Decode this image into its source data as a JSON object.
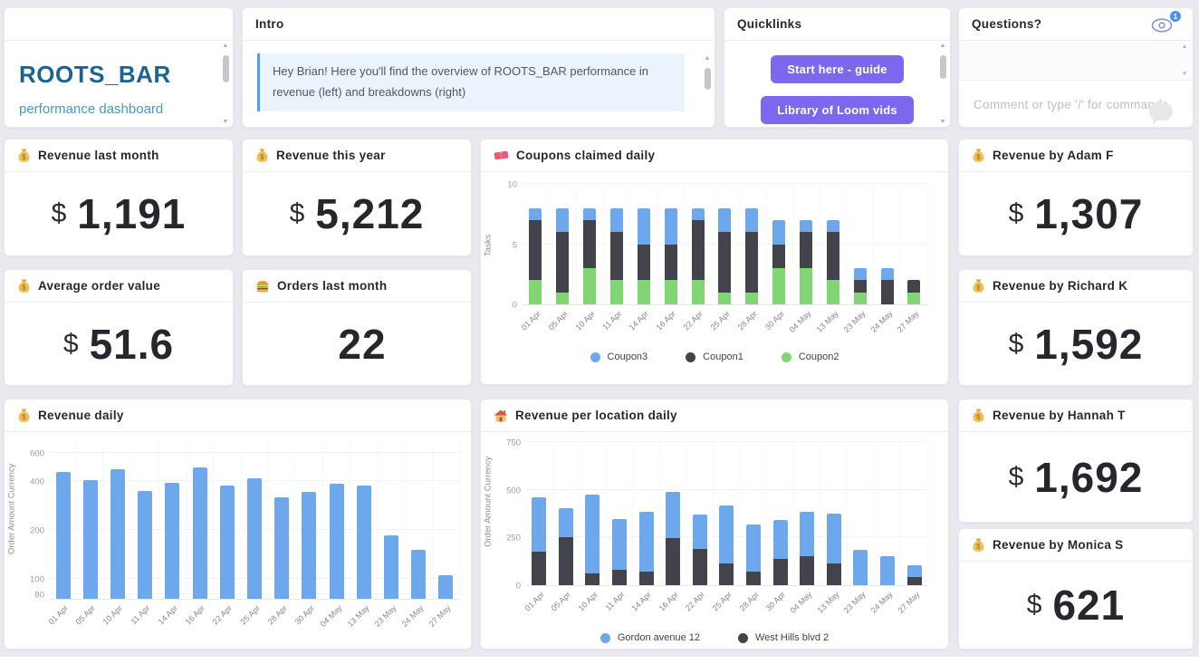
{
  "brand": {
    "title": "ROOTS_BAR",
    "subtitle": "performance dashboard"
  },
  "intro": {
    "title": "Intro",
    "text": "Hey Brian! Here you'll find the overview of ROOTS_BAR performance in revenue (left) and breakdowns (right)"
  },
  "quicklinks": {
    "title": "Quicklinks",
    "buttons": [
      "Start here - guide",
      "Library of Loom vids"
    ]
  },
  "questions": {
    "title": "Questions?",
    "watcher_badge": "1",
    "comment_placeholder": "Comment or type '/' for commands"
  },
  "kpis": [
    {
      "title": "Revenue last month",
      "icon": "money-bag-icon",
      "prefix": "$",
      "value": "1,191"
    },
    {
      "title": "Revenue this year",
      "icon": "money-bag-icon",
      "prefix": "$",
      "value": "5,212"
    },
    {
      "title": "Average order value",
      "icon": "money-bag-icon",
      "prefix": "$",
      "value": "51.6"
    },
    {
      "title": "Orders last month",
      "icon": "burger-icon",
      "prefix": "",
      "value": "22"
    },
    {
      "title": "Revenue by Adam F",
      "icon": "money-bag-icon",
      "prefix": "$",
      "value": "1,307"
    },
    {
      "title": "Revenue by Richard K",
      "icon": "money-bag-icon",
      "prefix": "$",
      "value": "1,592"
    },
    {
      "title": "Revenue by Hannah T",
      "icon": "money-bag-icon",
      "prefix": "$",
      "value": "1,692"
    },
    {
      "title": "Revenue by Monica S",
      "icon": "money-bag-icon",
      "prefix": "$",
      "value": "621"
    }
  ],
  "colors": {
    "accent_purple": "#7B68EE",
    "bar_blue": "#6DA8EC",
    "bar_dark": "#43434B",
    "bar_green": "#7FD673",
    "badge_blue": "#4A90F5",
    "brand_blue": "#1B6492",
    "quote_border": "#4AA0F5",
    "quote_bg": "#EBF4FD"
  },
  "chart_data": [
    {
      "type": "bar",
      "stacked": true,
      "title": "Coupons claimed daily",
      "icon": "ticket-icon",
      "ylabel": "Tasks",
      "scale": "linear",
      "ylim": [
        0,
        10
      ],
      "yticks": [
        10,
        5,
        0
      ],
      "grid": true,
      "legend_position": "bottom",
      "categories": [
        "01 Apr",
        "05 Apr",
        "10 Apr",
        "11 Apr",
        "14 Apr",
        "16 Apr",
        "22 Apr",
        "25 Apr",
        "28 Apr",
        "30 Apr",
        "04 May",
        "13 May",
        "23 May",
        "24 May",
        "27 May"
      ],
      "series": [
        {
          "name": "Coupon2",
          "color": "#7FD673",
          "values": [
            2,
            1,
            3,
            2,
            2,
            2,
            2,
            1,
            1,
            3,
            3,
            2,
            1,
            0,
            1
          ]
        },
        {
          "name": "Coupon1",
          "color": "#43434B",
          "values": [
            5,
            5,
            4,
            4,
            3,
            3,
            5,
            5,
            5,
            2,
            3,
            4,
            1,
            2,
            1
          ]
        },
        {
          "name": "Coupon3",
          "color": "#6DA8EC",
          "values": [
            1,
            2,
            1,
            2,
            3,
            3,
            1,
            2,
            2,
            2,
            1,
            1,
            1,
            1,
            0
          ]
        }
      ],
      "legend_order": [
        "Coupon3",
        "Coupon1",
        "Coupon2"
      ]
    },
    {
      "type": "bar",
      "stacked": false,
      "title": "Revenue daily",
      "icon": "money-bag-icon",
      "ylabel": "Order Amount Currency",
      "scale": "log",
      "ylim": [
        75,
        700
      ],
      "yticks": [
        600,
        400,
        200,
        100,
        80
      ],
      "grid": true,
      "legend_position": "none",
      "categories": [
        "01 Apr",
        "05 Apr",
        "10 Apr",
        "11 Apr",
        "14 Apr",
        "16 Apr",
        "22 Apr",
        "25 Apr",
        "28 Apr",
        "30 Apr",
        "04 May",
        "13 May",
        "23 May",
        "24 May",
        "27 May"
      ],
      "series": [
        {
          "name": "Order Amount",
          "color": "#6DA8EC",
          "values": [
            460,
            405,
            475,
            350,
            390,
            490,
            375,
            420,
            320,
            345,
            385,
            375,
            185,
            150,
            105
          ]
        }
      ],
      "legend_order": []
    },
    {
      "type": "bar",
      "stacked": true,
      "title": "Revenue per location daily",
      "icon": "house-icon",
      "ylabel": "Order Amount Currency",
      "scale": "linear",
      "ylim": [
        0,
        750
      ],
      "yticks": [
        750,
        500,
        250,
        0
      ],
      "grid": true,
      "legend_position": "bottom",
      "categories": [
        "01 Apr",
        "05 Apr",
        "10 Apr",
        "11 Apr",
        "14 Apr",
        "16 Apr",
        "22 Apr",
        "25 Apr",
        "28 Apr",
        "30 Apr",
        "04 May",
        "13 May",
        "23 May",
        "24 May",
        "27 May"
      ],
      "series": [
        {
          "name": "West Hills blvd 2",
          "color": "#43434B",
          "values": [
            175,
            250,
            60,
            80,
            70,
            245,
            190,
            115,
            70,
            140,
            150,
            115,
            0,
            0,
            45
          ]
        },
        {
          "name": "Gordon avenue 12",
          "color": "#6DA8EC",
          "values": [
            285,
            155,
            415,
            265,
            315,
            245,
            180,
            305,
            250,
            200,
            235,
            260,
            185,
            150,
            60
          ]
        }
      ],
      "legend_order": [
        "Gordon avenue 12",
        "West Hills blvd 2"
      ]
    }
  ]
}
